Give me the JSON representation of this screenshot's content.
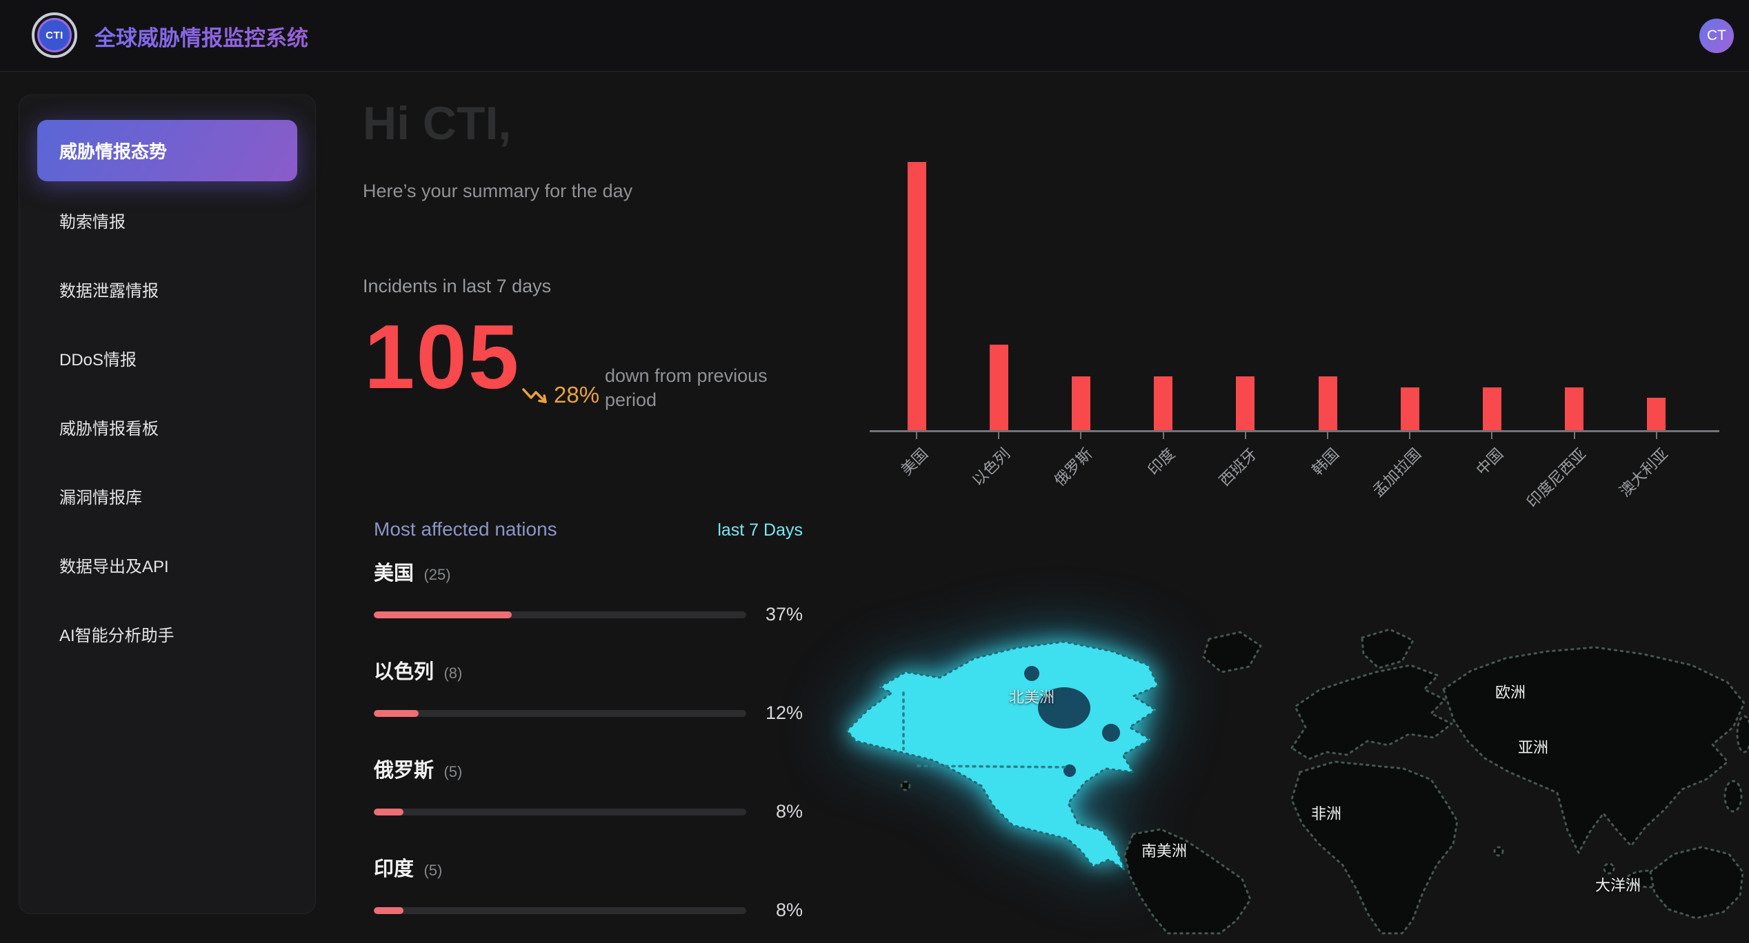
{
  "header": {
    "logo_text": "CTI",
    "app_title": "全球威胁情报监控系统",
    "avatar_text": "CT"
  },
  "sidebar": {
    "items": [
      {
        "label": "威胁情报态势",
        "active": true
      },
      {
        "label": "勒索情报",
        "active": false
      },
      {
        "label": "数据泄露情报",
        "active": false
      },
      {
        "label": "DDoS情报",
        "active": false
      },
      {
        "label": "威胁情报看板",
        "active": false
      },
      {
        "label": "漏洞情报库",
        "active": false
      },
      {
        "label": "数据导出及API",
        "active": false
      },
      {
        "label": "AI智能分析助手",
        "active": false
      }
    ]
  },
  "summary": {
    "greeting": "Hi CTI,",
    "subtitle": "Here’s your summary for the day",
    "incidents_label": "Incidents in last 7 days",
    "incidents_value": "105",
    "trend_percent": "28%",
    "trend_note": "down from previous period"
  },
  "chart_data": {
    "type": "bar",
    "title": "",
    "categories": [
      "美国",
      "以色列",
      "俄罗斯",
      "印度",
      "西班牙",
      "韩国",
      "孟加拉国",
      "中国",
      "印度尼西亚",
      "澳大利亚"
    ],
    "values": [
      25,
      8,
      5,
      5,
      5,
      5,
      4,
      4,
      4,
      3
    ],
    "xlabel": "",
    "ylabel": "",
    "ylim": [
      0,
      25
    ],
    "grid": false,
    "legend": "none",
    "bar_color": "#f8494d"
  },
  "nations": {
    "title": "Most affected nations",
    "range_label": "last 7 Days",
    "rows": [
      {
        "name": "美国",
        "count": "(25)",
        "percent": "37%",
        "value": 37
      },
      {
        "name": "以色列",
        "count": "(8)",
        "percent": "12%",
        "value": 12
      },
      {
        "name": "俄罗斯",
        "count": "(5)",
        "percent": "8%",
        "value": 8
      },
      {
        "name": "印度",
        "count": "(5)",
        "percent": "8%",
        "value": 8
      }
    ]
  },
  "map": {
    "labels": [
      "北美洲",
      "欧洲",
      "亚洲",
      "非洲",
      "南美洲",
      "大洋洲"
    ],
    "highlighted_continent": "北美洲"
  },
  "colors": {
    "accent_red": "#f8494d",
    "progress_fill": "#ee6e74",
    "trend_orange": "#e9a23c",
    "link_cyan": "#79e7f4",
    "active_gradient_start": "#5a66d6",
    "active_gradient_end": "#8a5cc9",
    "map_highlight": "#3edfee"
  }
}
